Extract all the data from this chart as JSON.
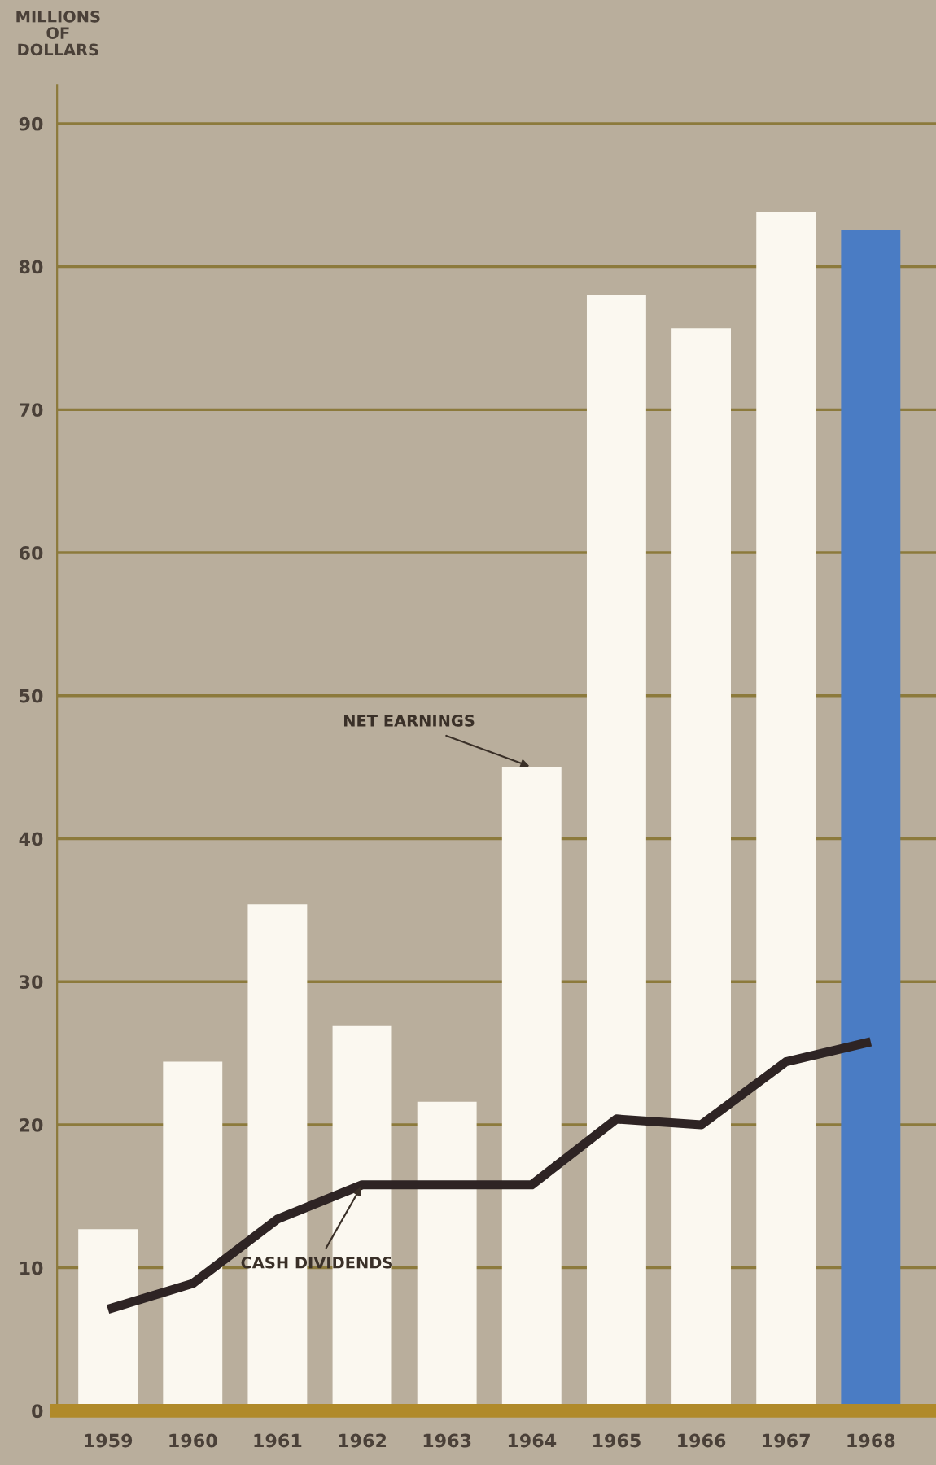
{
  "chart_data": {
    "type": "bar",
    "ylabel": "MILLIONS\nOF\nDOLLARS",
    "categories": [
      "1959",
      "1960",
      "1961",
      "1962",
      "1963",
      "1964",
      "1965",
      "1966",
      "1967",
      "1968"
    ],
    "series": [
      {
        "values": [
          12.7,
          24.4,
          35.4,
          26.9,
          21.6,
          45.0,
          78.0,
          75.7,
          83.8,
          82.6
        ],
        "colors": [
          "#fbf8f0",
          "#fbf8f0",
          "#fbf8f0",
          "#fbf8f0",
          "#fbf8f0",
          "#fbf8f0",
          "#fbf8f0",
          "#fbf8f0",
          "#fbf8f0",
          "#4a7cc4"
        ]
      },
      {
        "type": "line",
        "color": "#2e2424",
        "values": [
          7.1,
          8.9,
          13.4,
          15.8,
          15.8,
          15.8,
          20.4,
          20.0,
          24.4,
          25.8
        ]
      }
    ],
    "annotations": [
      {
        "text": "NET EARNINGS",
        "x": "1964",
        "y": 45.0
      },
      {
        "text": "CASH DIVIDENDS",
        "x": "1962",
        "y": 15.8
      }
    ],
    "ylim": [
      0,
      92.7
    ],
    "yticks": [
      0,
      10,
      20,
      30,
      40,
      50,
      60,
      70,
      80,
      90
    ],
    "grid": "y",
    "marker": "none",
    "line_style": "solid"
  }
}
